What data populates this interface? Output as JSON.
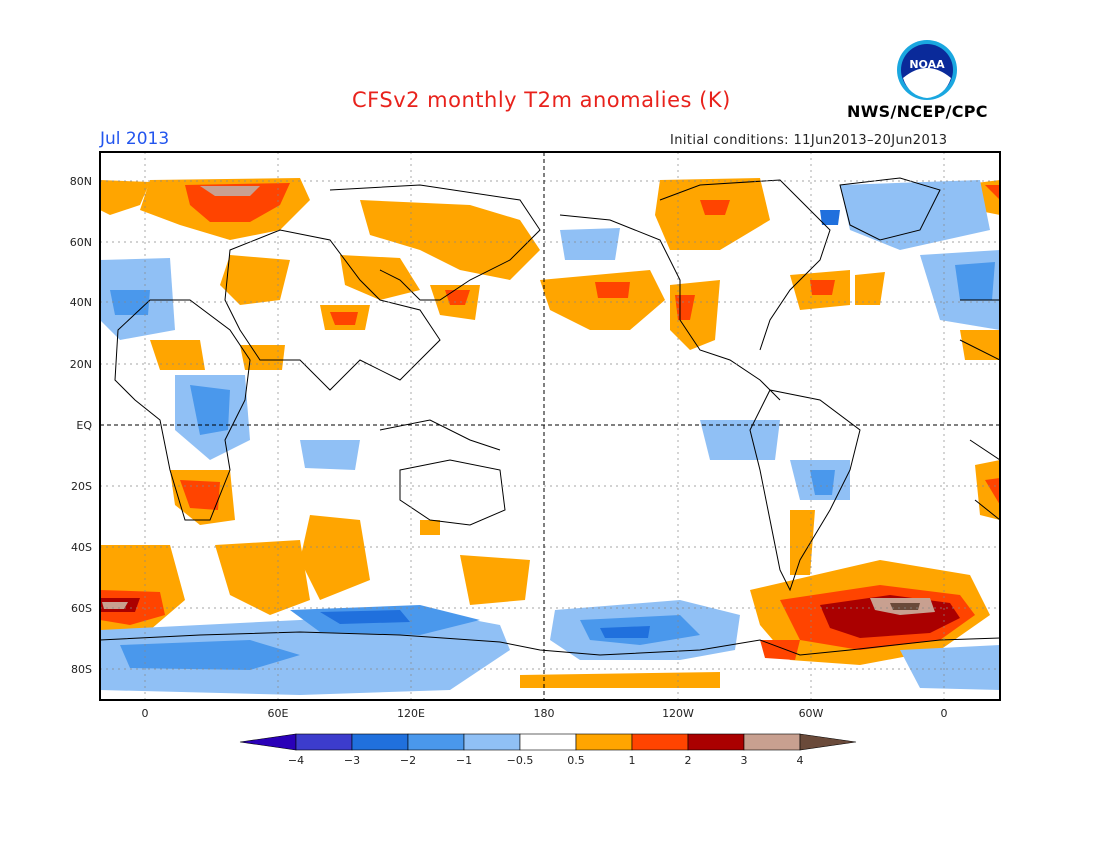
{
  "header": {
    "title": "CFSv2 monthly T2m anomalies (K)",
    "agency": "NWS/NCEP/CPC",
    "month": "Jul 2013",
    "initial_conditions": "Initial conditions: 11Jun2013–20Jun2013"
  },
  "logo": {
    "text": "NOAA",
    "icon": "noaa-logo-icon"
  },
  "map": {
    "projection": "cylindrical equidistant, centered 165E",
    "lat_labels": [
      "80N",
      "60N",
      "40N",
      "20N",
      "EQ",
      "20S",
      "40S",
      "60S",
      "80S"
    ],
    "lon_labels": [
      "0",
      "60E",
      "120E",
      "180",
      "120W",
      "60W",
      "0"
    ],
    "field": "2m temperature anomaly (K)"
  },
  "colorbar": {
    "tick_labels": [
      "−4",
      "−3",
      "−2",
      "−1",
      "−0.5",
      "0.5",
      "1",
      "2",
      "3",
      "4"
    ],
    "colors": [
      "#2a00b8",
      "#3c3ccc",
      "#2070dd",
      "#4a98ec",
      "#90c0f5",
      "#ffffff",
      "#ffa500",
      "#ff4400",
      "#aa0000",
      "#c8a090",
      "#6a4a3a"
    ]
  }
}
